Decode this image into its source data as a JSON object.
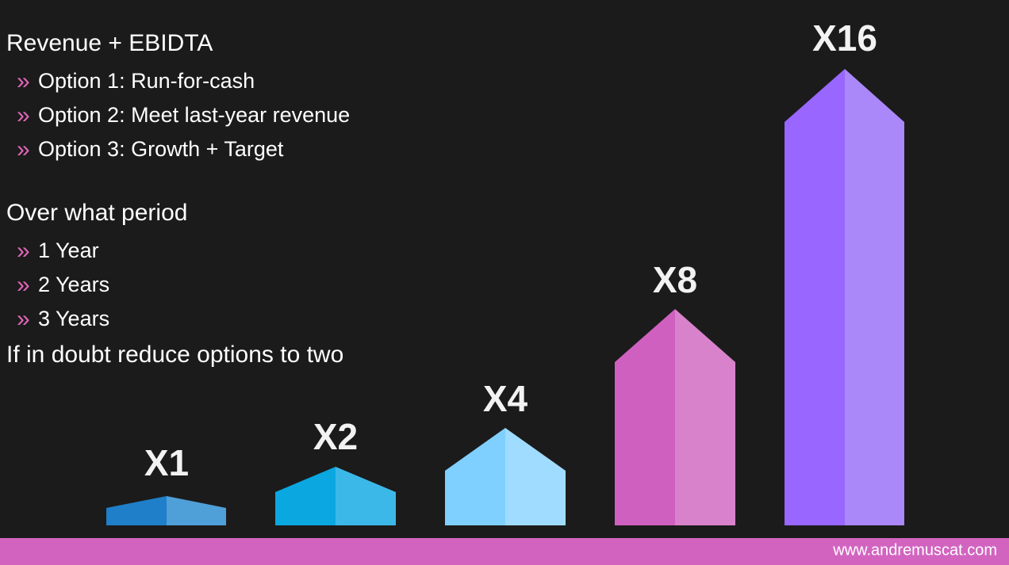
{
  "sections": [
    {
      "heading": "Revenue + EBIDTA",
      "items": [
        "Option 1: Run-for-cash",
        "Option 2: Meet last-year revenue",
        "Option 3: Growth + Target"
      ]
    },
    {
      "heading": "Over what period",
      "items": [
        "1 Year",
        "2 Years",
        "3 Years"
      ]
    }
  ],
  "bullet": "»",
  "note": "If in doubt reduce options to two",
  "arrows": [
    {
      "label": "X1"
    },
    {
      "label": "X2"
    },
    {
      "label": "X4"
    },
    {
      "label": "X8"
    },
    {
      "label": "X16"
    }
  ],
  "footer": "www.andremuscat.com"
}
